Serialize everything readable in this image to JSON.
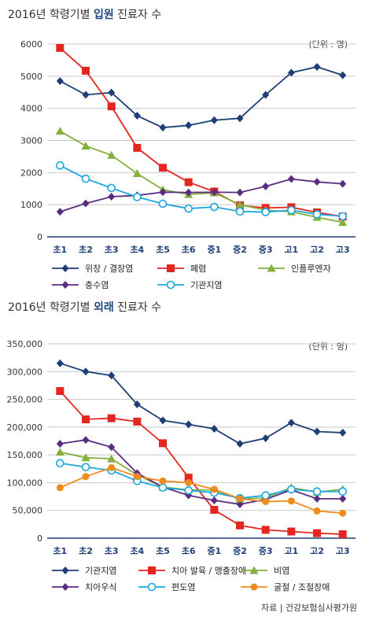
{
  "source": "자료 | 건강보험심사평가원",
  "chart_data": [
    {
      "type": "line",
      "title_prefix": "2016년 학령기별 ",
      "title_bold": "입원",
      "title_suffix": " 진료자 수",
      "unit": "(단위 : 명)",
      "categories": [
        "초1",
        "초2",
        "초3",
        "초4",
        "초5",
        "초6",
        "중1",
        "중2",
        "중3",
        "고1",
        "고2",
        "고3"
      ],
      "ylim": [
        0,
        6000
      ],
      "yticks": [
        0,
        1000,
        2000,
        3000,
        4000,
        5000,
        6000
      ],
      "ytick_labels": [
        "0",
        "1000",
        "2000",
        "3000",
        "4000",
        "5000",
        "6000"
      ],
      "grid": true,
      "legend_position": "bottom",
      "series": [
        {
          "name": "위장 / 결장염",
          "color": "#1d3f74",
          "marker": "diamond",
          "values": [
            4850,
            4420,
            4490,
            3770,
            3400,
            3470,
            3630,
            3690,
            4420,
            5110,
            5290,
            5030
          ]
        },
        {
          "name": "폐렴",
          "color": "#e42620",
          "marker": "square",
          "values": [
            5880,
            5170,
            4060,
            2770,
            2150,
            1700,
            1410,
            980,
            900,
            920,
            760,
            630
          ]
        },
        {
          "name": "인플루엔자",
          "color": "#84b03e",
          "marker": "triangle",
          "values": [
            3290,
            2830,
            2540,
            1970,
            1470,
            1320,
            1370,
            1000,
            830,
            780,
            610,
            450
          ]
        },
        {
          "name": "충수염",
          "color": "#5b2d82",
          "marker": "diamond",
          "values": [
            780,
            1040,
            1250,
            1290,
            1390,
            1380,
            1390,
            1380,
            1570,
            1800,
            1710,
            1650
          ]
        },
        {
          "name": "기관지염",
          "color": "#1ba6e0",
          "marker": "circle",
          "values": [
            2220,
            1810,
            1520,
            1240,
            1030,
            880,
            930,
            790,
            770,
            830,
            700,
            640
          ]
        }
      ]
    },
    {
      "type": "line",
      "title_prefix": "2016년 학령기별 ",
      "title_bold": "외래",
      "title_suffix": " 진료자 수",
      "unit": "(단위 : 명)",
      "categories": [
        "초1",
        "초2",
        "초3",
        "초4",
        "초5",
        "초6",
        "중1",
        "중2",
        "중3",
        "고1",
        "고2",
        "고3"
      ],
      "ylim": [
        0,
        350000
      ],
      "yticks": [
        0,
        50000,
        100000,
        150000,
        200000,
        250000,
        300000,
        350000
      ],
      "ytick_labels": [
        "0",
        "50,000",
        "100,000",
        "150,000",
        "200,000",
        "250,000",
        "300,000",
        "350,000"
      ],
      "grid": true,
      "legend_position": "bottom",
      "series": [
        {
          "name": "기관지염",
          "color": "#1d3f74",
          "marker": "diamond",
          "values": [
            315000,
            300000,
            293000,
            241000,
            212000,
            205000,
            197000,
            170000,
            180000,
            208000,
            192000,
            190000
          ]
        },
        {
          "name": "치아 발육 / 맹출장애",
          "color": "#e42620",
          "marker": "square",
          "values": [
            265000,
            214000,
            216000,
            210000,
            171000,
            109000,
            51000,
            23000,
            15000,
            12000,
            9000,
            7000
          ]
        },
        {
          "name": "비염",
          "color": "#84b03e",
          "marker": "triangle",
          "values": [
            155000,
            145000,
            143000,
            114000,
            92000,
            87000,
            87000,
            70000,
            73000,
            91000,
            83000,
            88000
          ]
        },
        {
          "name": "치아우식",
          "color": "#5b2d82",
          "marker": "diamond",
          "values": [
            170000,
            177000,
            164000,
            117000,
            92000,
            77000,
            68000,
            61000,
            70000,
            87000,
            71000,
            71000
          ]
        },
        {
          "name": "편도염",
          "color": "#1ba6e0",
          "marker": "circle",
          "values": [
            135000,
            128000,
            122000,
            103000,
            91000,
            86000,
            82000,
            72000,
            77000,
            88000,
            84000,
            84000
          ]
        },
        {
          "name": "굴절 / 조절장애",
          "color": "#f08c1d",
          "marker": "circle",
          "values": [
            91000,
            111000,
            127000,
            111000,
            103000,
            100000,
            88000,
            71000,
            66000,
            67000,
            49000,
            45000
          ]
        }
      ]
    }
  ]
}
